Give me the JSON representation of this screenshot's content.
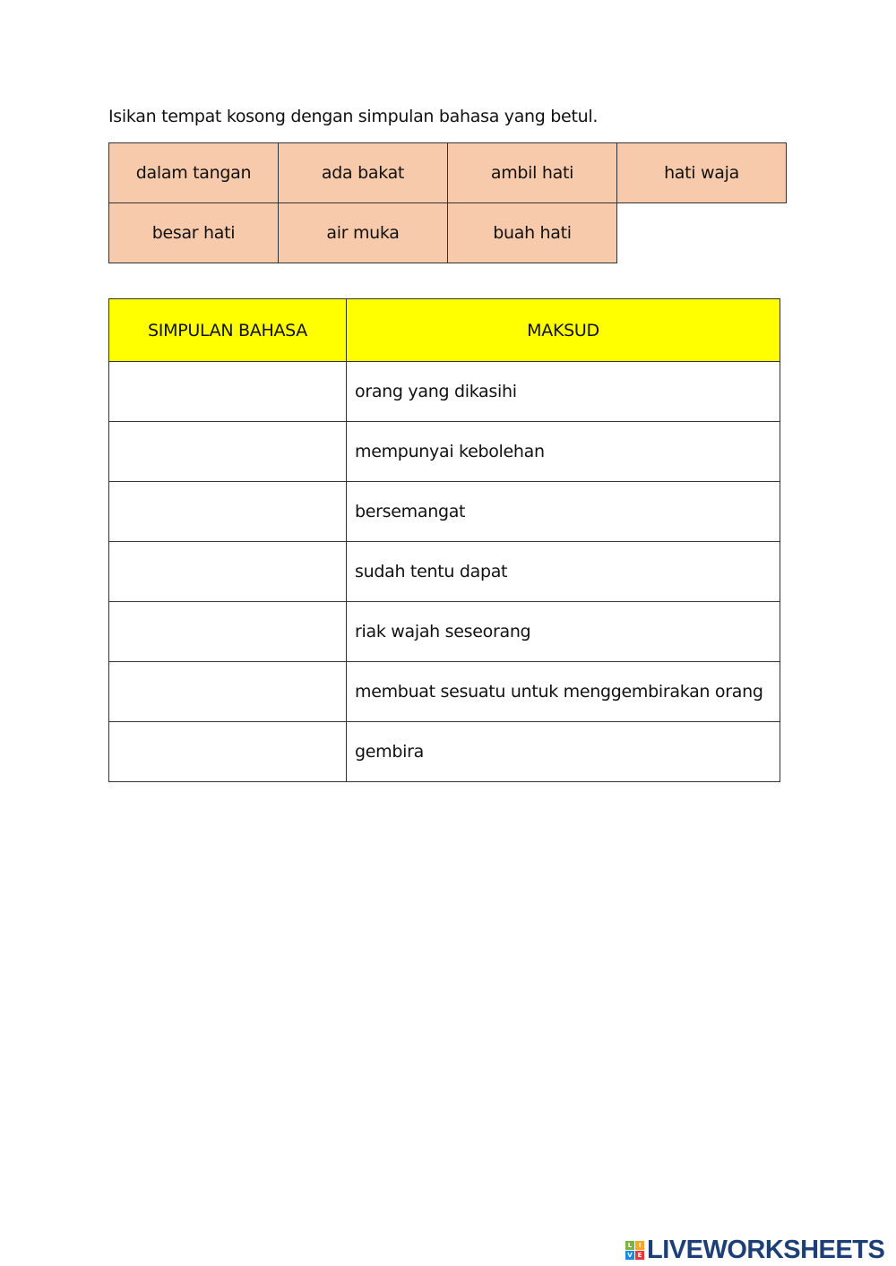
{
  "instruction": "Isikan tempat kosong dengan simpulan bahasa yang betul.",
  "word_bank": [
    [
      "dalam tangan",
      "ada bakat",
      "ambil hati",
      "hati waja"
    ],
    [
      "besar hati",
      "air muka",
      "buah hati"
    ]
  ],
  "table": {
    "headers": [
      "SIMPULAN BAHASA",
      "MAKSUD"
    ],
    "rows": [
      "orang yang dikasihi",
      "mempunyai kebolehan",
      "bersemangat",
      "sudah tentu dapat",
      "riak wajah seseorang",
      "membuat sesuatu untuk menggembirakan orang",
      "gembira"
    ]
  },
  "colors": {
    "word_bank_bg": "#f7caac",
    "header_bg": "#ffff00",
    "logo": "#1d3f78"
  },
  "logo": {
    "text": "LIVEWORKSHEETS",
    "blocks": [
      "L",
      "I",
      "V",
      "E"
    ]
  }
}
